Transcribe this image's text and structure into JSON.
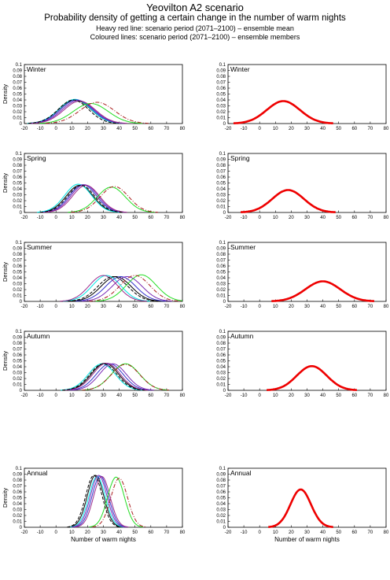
{
  "titles": {
    "main": "Yeovilton A2 scenario",
    "subtitle": "Probability density of getting a certain change in the number of warm nights",
    "note1": "Heavy red line: scenario period (2071–2100) – ensemble mean",
    "note2": "Coloured lines: scenario period (2071–2100) – ensemble members"
  },
  "chart_data": {
    "type": "line",
    "xlabel": "Number of warm nights",
    "ylabel": "Density",
    "xlim": [
      -20,
      80
    ],
    "ylim": [
      0,
      0.1
    ],
    "xticks": [
      -20,
      -10,
      0,
      10,
      20,
      30,
      40,
      50,
      60,
      70,
      80
    ],
    "yticks": [
      0,
      0.01,
      0.02,
      0.03,
      0.04,
      0.05,
      0.06,
      0.07,
      0.08,
      0.09,
      0.1
    ],
    "member_colors": [
      "#000000",
      "#00e5e5",
      "#3333cc",
      "#7a2bb5",
      "#9d2c8c",
      "#22dd22",
      "#aa1e1e",
      "#000000"
    ],
    "mean_color": "#ee0000",
    "panels": [
      {
        "season": "Winter",
        "members": [
          {
            "mu": 12,
            "sd": 10,
            "peak": 0.04
          },
          {
            "mu": 12,
            "sd": 10,
            "peak": 0.041
          },
          {
            "mu": 13,
            "sd": 10,
            "peak": 0.04
          },
          {
            "mu": 14,
            "sd": 10,
            "peak": 0.039
          },
          {
            "mu": 15,
            "sd": 10,
            "peak": 0.038
          },
          {
            "mu": 22,
            "sd": 11,
            "peak": 0.034
          },
          {
            "mu": 26,
            "sd": 11,
            "peak": 0.036
          },
          {
            "mu": 11,
            "sd": 9.5,
            "peak": 0.04
          }
        ],
        "mean": {
          "mu": 15,
          "sd": 10.5,
          "peak": 0.038
        }
      },
      {
        "season": "Spring",
        "members": [
          {
            "mu": 15,
            "sd": 8.5,
            "peak": 0.046
          },
          {
            "mu": 14,
            "sd": 8.5,
            "peak": 0.048
          },
          {
            "mu": 17,
            "sd": 8.5,
            "peak": 0.047
          },
          {
            "mu": 18,
            "sd": 8.5,
            "peak": 0.047
          },
          {
            "mu": 19,
            "sd": 8.5,
            "peak": 0.046
          },
          {
            "mu": 35,
            "sd": 9,
            "peak": 0.043
          },
          {
            "mu": 37,
            "sd": 9,
            "peak": 0.044
          },
          {
            "mu": 16,
            "sd": 8.5,
            "peak": 0.046
          }
        ],
        "mean": {
          "mu": 18,
          "sd": 10,
          "peak": 0.038
        }
      },
      {
        "season": "Summer",
        "members": [
          {
            "mu": 38,
            "sd": 9.5,
            "peak": 0.042
          },
          {
            "mu": 32,
            "sd": 9,
            "peak": 0.044
          },
          {
            "mu": 41,
            "sd": 9.5,
            "peak": 0.042
          },
          {
            "mu": 45,
            "sd": 9.5,
            "peak": 0.042
          },
          {
            "mu": 30,
            "sd": 9,
            "peak": 0.044
          },
          {
            "mu": 54,
            "sd": 9.5,
            "peak": 0.045
          },
          {
            "mu": 50,
            "sd": 9.5,
            "peak": 0.044
          },
          {
            "mu": 36,
            "sd": 9.5,
            "peak": 0.042
          }
        ],
        "mean": {
          "mu": 40,
          "sd": 11,
          "peak": 0.034
        }
      },
      {
        "season": "Autumn",
        "members": [
          {
            "mu": 31,
            "sd": 8.5,
            "peak": 0.046
          },
          {
            "mu": 29,
            "sd": 8.5,
            "peak": 0.045
          },
          {
            "mu": 34,
            "sd": 8.5,
            "peak": 0.045
          },
          {
            "mu": 36,
            "sd": 8.5,
            "peak": 0.045
          },
          {
            "mu": 32,
            "sd": 8.5,
            "peak": 0.046
          },
          {
            "mu": 44,
            "sd": 9,
            "peak": 0.045
          },
          {
            "mu": 44,
            "sd": 9,
            "peak": 0.044
          },
          {
            "mu": 30,
            "sd": 8.5,
            "peak": 0.045
          }
        ],
        "mean": {
          "mu": 33,
          "sd": 9.5,
          "peak": 0.041
        }
      },
      {
        "season": "Annual",
        "members": [
          {
            "mu": 25,
            "sd": 5.2,
            "peak": 0.088
          },
          {
            "mu": 26,
            "sd": 5.2,
            "peak": 0.086
          },
          {
            "mu": 28,
            "sd": 5.2,
            "peak": 0.087
          },
          {
            "mu": 27,
            "sd": 5.2,
            "peak": 0.088
          },
          {
            "mu": 29,
            "sd": 5.2,
            "peak": 0.086
          },
          {
            "mu": 38,
            "sd": 5.3,
            "peak": 0.085
          },
          {
            "mu": 40,
            "sd": 5.3,
            "peak": 0.083
          },
          {
            "mu": 24,
            "sd": 5.2,
            "peak": 0.088
          }
        ],
        "mean": {
          "mu": 26,
          "sd": 6.5,
          "peak": 0.064
        }
      }
    ]
  }
}
